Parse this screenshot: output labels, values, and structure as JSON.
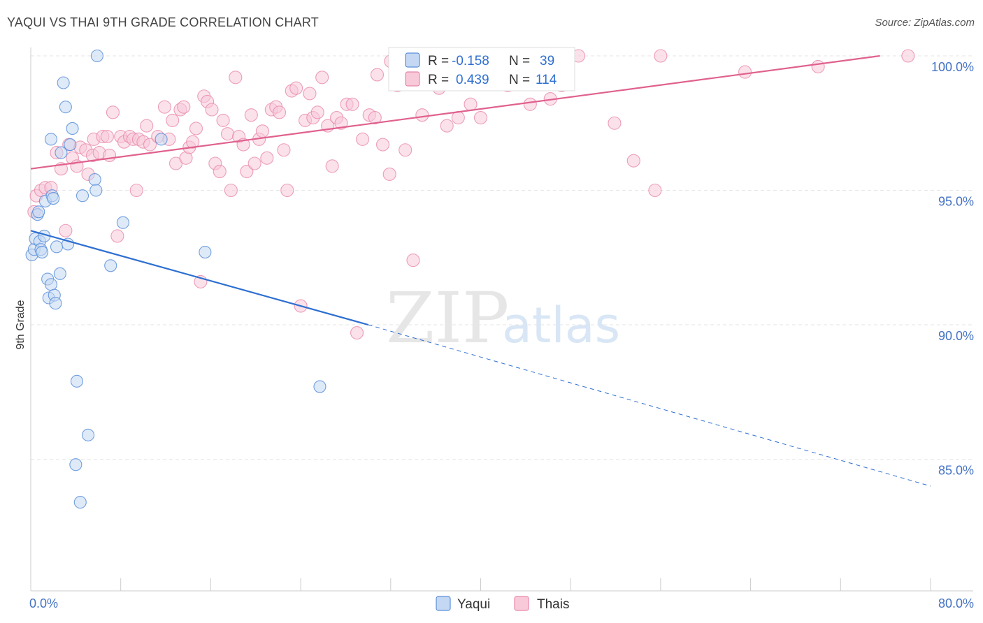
{
  "header": {
    "title": "YAQUI VS THAI 9TH GRADE CORRELATION CHART",
    "source": "Source: ZipAtlas.com"
  },
  "watermark": {
    "zip": "ZIP",
    "atlas": "atlas"
  },
  "colors": {
    "blue": "#5b8fd9",
    "blue_fill": "#c5d8f3",
    "blue_line": "#2e6fd1",
    "pink": "#e888aa",
    "pink_fill": "#f8c9d8",
    "pink_line": "#e0618e",
    "grid": "#e6e6e6"
  },
  "legend": {
    "rows": [
      {
        "r_label": "R =",
        "r_value": "-0.158",
        "n_label": "N =",
        "n_value": "39"
      },
      {
        "r_label": "R =",
        "r_value": "0.439",
        "n_label": "N =",
        "n_value": "114"
      }
    ]
  },
  "chart_data": {
    "type": "scatter",
    "title": "YAQUI VS THAI 9TH GRADE CORRELATION CHART",
    "xlabel": "",
    "ylabel": "9th Grade",
    "xlim": [
      0,
      80
    ],
    "ylim": [
      80.5,
      100.8
    ],
    "x_tick_labels": [
      "0.0%",
      "80.0%"
    ],
    "y_ticks": [
      85,
      90,
      95,
      100
    ],
    "y_tick_labels": [
      "85.0%",
      "90.0%",
      "95.0%",
      "100.0%"
    ],
    "series": [
      {
        "name": "Yaqui",
        "r": -0.158,
        "n": 39,
        "trend": {
          "x0": 0,
          "y0": 93.5,
          "x1": 30,
          "y1": 90.0,
          "x_dash_end": 80,
          "y_dash_end": 84.0
        },
        "points": [
          [
            0.1,
            92.6
          ],
          [
            0.3,
            92.8
          ],
          [
            0.4,
            93.2
          ],
          [
            0.6,
            94.1
          ],
          [
            0.8,
            93.1
          ],
          [
            0.9,
            92.8
          ],
          [
            1.0,
            92.7
          ],
          [
            1.3,
            94.6
          ],
          [
            1.5,
            91.7
          ],
          [
            1.6,
            91.0
          ],
          [
            1.8,
            91.5
          ],
          [
            1.9,
            94.8
          ],
          [
            2.1,
            91.1
          ],
          [
            2.2,
            90.8
          ],
          [
            2.3,
            92.9
          ],
          [
            2.6,
            91.9
          ],
          [
            2.7,
            96.4
          ],
          [
            2.9,
            99.0
          ],
          [
            3.1,
            98.1
          ],
          [
            3.3,
            93.0
          ],
          [
            3.5,
            96.7
          ],
          [
            3.7,
            97.3
          ],
          [
            4.1,
            87.9
          ],
          [
            4.4,
            83.4
          ],
          [
            4.6,
            94.8
          ],
          [
            5.1,
            85.9
          ],
          [
            4.0,
            84.8
          ],
          [
            5.7,
            95.4
          ],
          [
            5.8,
            95.0
          ],
          [
            5.9,
            100.0
          ],
          [
            7.1,
            92.2
          ],
          [
            8.2,
            93.8
          ],
          [
            11.6,
            96.9
          ],
          [
            15.5,
            92.7
          ],
          [
            25.7,
            87.7
          ],
          [
            1.8,
            96.9
          ],
          [
            0.7,
            94.2
          ],
          [
            1.2,
            93.3
          ],
          [
            2.0,
            94.7
          ]
        ]
      },
      {
        "name": "Thais",
        "r": 0.439,
        "n": 114,
        "trend": {
          "x0": 0,
          "y0": 95.8,
          "x1": 75.5,
          "y1": 100.0
        },
        "points": [
          [
            0.3,
            94.2
          ],
          [
            0.5,
            94.8
          ],
          [
            0.9,
            95.0
          ],
          [
            1.3,
            95.1
          ],
          [
            1.8,
            95.1
          ],
          [
            2.3,
            96.4
          ],
          [
            2.7,
            95.8
          ],
          [
            3.1,
            93.5
          ],
          [
            3.4,
            96.7
          ],
          [
            3.7,
            96.2
          ],
          [
            4.1,
            95.9
          ],
          [
            4.4,
            96.6
          ],
          [
            4.9,
            96.5
          ],
          [
            5.1,
            95.6
          ],
          [
            5.5,
            96.3
          ],
          [
            5.6,
            96.9
          ],
          [
            6.1,
            96.4
          ],
          [
            6.4,
            97.0
          ],
          [
            6.8,
            97.0
          ],
          [
            7.0,
            96.3
          ],
          [
            7.3,
            97.9
          ],
          [
            7.7,
            93.3
          ],
          [
            8.0,
            97.0
          ],
          [
            8.3,
            96.8
          ],
          [
            8.8,
            97.0
          ],
          [
            9.1,
            96.9
          ],
          [
            9.4,
            95.0
          ],
          [
            9.6,
            96.9
          ],
          [
            10.0,
            96.8
          ],
          [
            10.3,
            97.4
          ],
          [
            10.6,
            96.7
          ],
          [
            11.3,
            97.0
          ],
          [
            11.9,
            98.1
          ],
          [
            12.3,
            96.9
          ],
          [
            12.6,
            97.6
          ],
          [
            12.9,
            96.0
          ],
          [
            13.3,
            98.0
          ],
          [
            13.6,
            98.1
          ],
          [
            13.8,
            96.2
          ],
          [
            14.1,
            96.6
          ],
          [
            14.4,
            96.8
          ],
          [
            14.7,
            97.3
          ],
          [
            15.1,
            91.6
          ],
          [
            15.4,
            98.5
          ],
          [
            15.7,
            98.3
          ],
          [
            16.1,
            98.0
          ],
          [
            16.4,
            96.0
          ],
          [
            16.8,
            95.7
          ],
          [
            17.1,
            97.6
          ],
          [
            17.5,
            97.1
          ],
          [
            17.8,
            95.0
          ],
          [
            18.2,
            99.2
          ],
          [
            18.5,
            97.0
          ],
          [
            18.9,
            96.7
          ],
          [
            19.2,
            95.7
          ],
          [
            19.6,
            97.8
          ],
          [
            19.9,
            96.0
          ],
          [
            20.3,
            96.9
          ],
          [
            20.6,
            97.2
          ],
          [
            21.0,
            96.2
          ],
          [
            21.4,
            98.0
          ],
          [
            21.8,
            98.1
          ],
          [
            22.1,
            97.9
          ],
          [
            22.5,
            96.5
          ],
          [
            22.8,
            95.0
          ],
          [
            23.2,
            98.7
          ],
          [
            23.6,
            98.8
          ],
          [
            24.0,
            90.7
          ],
          [
            24.4,
            97.6
          ],
          [
            24.8,
            98.6
          ],
          [
            25.1,
            97.7
          ],
          [
            25.5,
            97.9
          ],
          [
            25.9,
            99.2
          ],
          [
            26.4,
            97.4
          ],
          [
            26.8,
            95.9
          ],
          [
            27.2,
            97.7
          ],
          [
            27.6,
            97.5
          ],
          [
            28.1,
            98.2
          ],
          [
            28.6,
            98.2
          ],
          [
            29.0,
            89.7
          ],
          [
            29.5,
            96.9
          ],
          [
            30.1,
            97.8
          ],
          [
            30.6,
            97.7
          ],
          [
            31.3,
            96.7
          ],
          [
            31.9,
            95.6
          ],
          [
            32.6,
            98.9
          ],
          [
            33.3,
            96.5
          ],
          [
            34.0,
            92.4
          ],
          [
            34.8,
            97.8
          ],
          [
            36.3,
            98.8
          ],
          [
            37.0,
            97.4
          ],
          [
            38.0,
            97.7
          ],
          [
            39.1,
            98.2
          ],
          [
            40.0,
            97.7
          ],
          [
            42.4,
            98.9
          ],
          [
            44.4,
            98.2
          ],
          [
            46.2,
            98.4
          ],
          [
            47.2,
            98.9
          ],
          [
            48.7,
            100.0
          ],
          [
            51.9,
            97.5
          ],
          [
            53.6,
            96.1
          ],
          [
            55.5,
            95.0
          ],
          [
            56.0,
            100.0
          ],
          [
            63.5,
            99.4
          ],
          [
            70.0,
            99.6
          ],
          [
            78.0,
            100.0
          ],
          [
            33.0,
            99.0
          ],
          [
            30.8,
            99.3
          ],
          [
            35.5,
            99.1
          ],
          [
            39.8,
            99.5
          ],
          [
            41.3,
            100.0
          ],
          [
            36.8,
            100.0
          ],
          [
            44.0,
            99.8
          ],
          [
            32.0,
            99.8
          ]
        ]
      }
    ]
  },
  "bottom_legend": {
    "items": [
      "Yaqui",
      "Thais"
    ]
  }
}
